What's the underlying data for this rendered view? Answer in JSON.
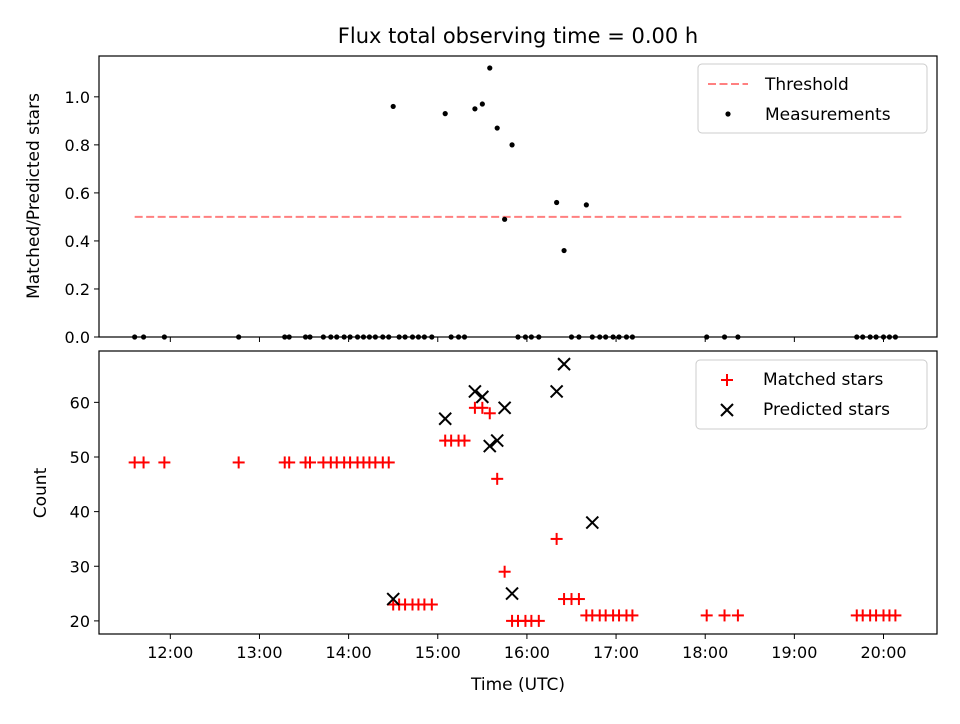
{
  "chart_data": [
    {
      "type": "scatter",
      "title": "Flux total observing time = 0.00 h",
      "xlabel": "",
      "ylabel": "Matched/Predicted stars",
      "xlim": [
        "11:12",
        "20:36"
      ],
      "ylim": [
        0,
        1.17
      ],
      "x_ticks": [
        "12:00",
        "13:00",
        "14:00",
        "15:00",
        "16:00",
        "17:00",
        "18:00",
        "19:00",
        "20:00"
      ],
      "y_ticks": [
        "0.0",
        "0.2",
        "0.4",
        "0.6",
        "0.8",
        "1.0"
      ],
      "legend_position": "top-right",
      "series": [
        {
          "name": "Threshold",
          "kind": "line",
          "style": "dashed",
          "color": "#ff8080",
          "x": [
            "11:36",
            "20:12"
          ],
          "y": [
            0.5,
            0.5
          ]
        },
        {
          "name": "Measurements",
          "kind": "scatter",
          "color": "#000000",
          "x": [
            "11:36",
            "11:42",
            "11:56",
            "12:46",
            "13:17",
            "13:20",
            "13:31",
            "13:34",
            "13:43",
            "13:48",
            "13:52",
            "13:57",
            "14:01",
            "14:06",
            "14:10",
            "14:14",
            "14:18",
            "14:23",
            "14:27",
            "14:30",
            "14:34",
            "14:38",
            "14:43",
            "14:47",
            "14:51",
            "14:56",
            "15:05",
            "15:09",
            "15:14",
            "15:18",
            "15:25",
            "15:30",
            "15:35",
            "15:40",
            "15:45",
            "15:50",
            "15:54",
            "15:59",
            "16:03",
            "16:08",
            "16:20",
            "16:25",
            "16:30",
            "16:35",
            "16:40",
            "16:44",
            "16:49",
            "16:53",
            "16:58",
            "17:02",
            "17:07",
            "17:11",
            "18:01",
            "18:13",
            "18:22",
            "19:42",
            "19:46",
            "19:51",
            "19:55",
            "20:00",
            "20:04",
            "20:08"
          ],
          "y": [
            0,
            0,
            0,
            0,
            0,
            0,
            0,
            0,
            0,
            0,
            0,
            0,
            0,
            0,
            0,
            0,
            0,
            0,
            0,
            0.96,
            0,
            0,
            0,
            0,
            0,
            0,
            0.93,
            0,
            0,
            0,
            0.95,
            0.97,
            1.12,
            0.87,
            0.49,
            0.8,
            0,
            0,
            0,
            0,
            0.56,
            0.36,
            0,
            0,
            0.55,
            0,
            0,
            0,
            0,
            0,
            0,
            0,
            0,
            0,
            0,
            0,
            0,
            0,
            0,
            0,
            0,
            0
          ]
        }
      ]
    },
    {
      "type": "scatter",
      "title": "",
      "xlabel": "Time (UTC)",
      "ylabel": "Count",
      "xlim": [
        "11:12",
        "20:36"
      ],
      "ylim": [
        17.6,
        69.4
      ],
      "x_ticks": [
        "12:00",
        "13:00",
        "14:00",
        "15:00",
        "16:00",
        "17:00",
        "18:00",
        "19:00",
        "20:00"
      ],
      "y_ticks": [
        "20",
        "30",
        "40",
        "50",
        "60"
      ],
      "legend_position": "top-right",
      "series": [
        {
          "name": "Matched stars",
          "marker": "plus",
          "color": "#ff0000",
          "x": [
            "11:36",
            "11:42",
            "11:56",
            "12:46",
            "13:17",
            "13:20",
            "13:31",
            "13:34",
            "13:43",
            "13:48",
            "13:52",
            "13:57",
            "14:01",
            "14:06",
            "14:10",
            "14:14",
            "14:18",
            "14:23",
            "14:27",
            "14:30",
            "14:34",
            "14:38",
            "14:43",
            "14:47",
            "14:51",
            "14:56",
            "15:05",
            "15:09",
            "15:14",
            "15:18",
            "15:25",
            "15:30",
            "15:35",
            "15:40",
            "15:45",
            "15:50",
            "15:54",
            "15:59",
            "16:03",
            "16:08",
            "16:20",
            "16:25",
            "16:30",
            "16:35",
            "16:40",
            "16:44",
            "16:49",
            "16:53",
            "16:58",
            "17:02",
            "17:07",
            "17:11",
            "18:01",
            "18:13",
            "18:22",
            "19:42",
            "19:46",
            "19:51",
            "19:55",
            "20:00",
            "20:04",
            "20:08"
          ],
          "y": [
            49,
            49,
            49,
            49,
            49,
            49,
            49,
            49,
            49,
            49,
            49,
            49,
            49,
            49,
            49,
            49,
            49,
            49,
            49,
            23,
            23,
            23,
            23,
            23,
            23,
            23,
            53,
            53,
            53,
            53,
            59,
            59,
            58,
            46,
            29,
            20,
            20,
            20,
            20,
            20,
            35,
            24,
            24,
            24,
            21,
            21,
            21,
            21,
            21,
            21,
            21,
            21,
            21,
            21,
            21,
            21,
            21,
            21,
            21,
            21,
            21,
            21
          ]
        },
        {
          "name": "Predicted stars",
          "marker": "cross",
          "color": "#000000",
          "x": [
            "14:30",
            "15:05",
            "15:25",
            "15:30",
            "15:35",
            "15:40",
            "15:45",
            "15:50",
            "16:20",
            "16:25",
            "16:44"
          ],
          "y": [
            24,
            57,
            62,
            61,
            52,
            53,
            59,
            25,
            62,
            67,
            38
          ]
        }
      ]
    }
  ]
}
